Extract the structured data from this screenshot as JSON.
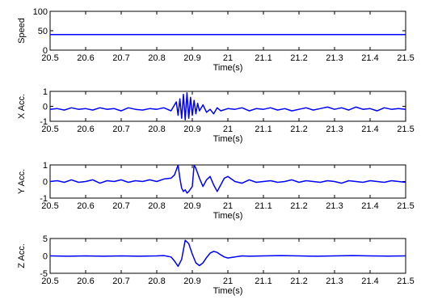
{
  "chart_data": [
    {
      "type": "line",
      "ylabel": "Speed",
      "xlabel": "Time(s)",
      "xlim": [
        20.5,
        21.5
      ],
      "ylim": [
        0,
        100
      ],
      "xticks": [
        "20.5",
        "20.6",
        "20.7",
        "20.8",
        "20.9",
        "21",
        "21.1",
        "21.2",
        "21.3",
        "21.4",
        "21.5"
      ],
      "yticks": [
        "0",
        "50",
        "100"
      ],
      "series": [
        {
          "color": "#0000ff",
          "x": [
            20.5,
            21.5
          ],
          "y": [
            40,
            40
          ]
        }
      ]
    },
    {
      "type": "line",
      "ylabel": "X Acc.",
      "xlabel": "Time(s)",
      "xlim": [
        20.5,
        21.5
      ],
      "ylim": [
        -1,
        1
      ],
      "xticks": [
        "20.5",
        "20.6",
        "20.7",
        "20.8",
        "20.9",
        "21",
        "21.1",
        "21.2",
        "21.3",
        "21.4",
        "21.5"
      ],
      "yticks": [
        "-1",
        "0",
        "1"
      ],
      "series": [
        {
          "color": "#0000ff",
          "x": [
            20.5,
            20.52,
            20.54,
            20.56,
            20.58,
            20.6,
            20.62,
            20.64,
            20.66,
            20.68,
            20.7,
            20.72,
            20.74,
            20.76,
            20.78,
            20.8,
            20.82,
            20.84,
            20.855,
            20.86,
            20.865,
            20.87,
            20.875,
            20.88,
            20.885,
            20.89,
            20.895,
            20.9,
            20.905,
            20.91,
            20.915,
            20.92,
            20.93,
            20.94,
            20.95,
            20.96,
            20.97,
            20.98,
            21.0,
            21.02,
            21.04,
            21.06,
            21.08,
            21.1,
            21.12,
            21.14,
            21.16,
            21.18,
            21.2,
            21.22,
            21.24,
            21.26,
            21.28,
            21.3,
            21.32,
            21.34,
            21.36,
            21.38,
            21.4,
            21.42,
            21.44,
            21.46,
            21.48,
            21.5
          ],
          "y": [
            -0.2,
            -0.15,
            -0.25,
            -0.1,
            -0.2,
            -0.15,
            -0.25,
            -0.1,
            -0.2,
            -0.15,
            -0.3,
            -0.1,
            -0.2,
            -0.25,
            -0.15,
            -0.2,
            -0.1,
            -0.3,
            0.3,
            -0.6,
            0.5,
            -0.8,
            0.8,
            -0.9,
            0.9,
            -0.8,
            0.6,
            -0.6,
            0.4,
            -0.5,
            0.2,
            -0.3,
            0.1,
            -0.4,
            -0.2,
            -0.5,
            -0.1,
            -0.3,
            -0.15,
            -0.2,
            -0.1,
            -0.3,
            -0.15,
            -0.2,
            -0.1,
            -0.25,
            -0.15,
            -0.3,
            -0.2,
            -0.1,
            -0.25,
            -0.15,
            -0.05,
            -0.2,
            -0.1,
            -0.25,
            -0.05,
            -0.2,
            -0.15,
            -0.3,
            -0.1,
            -0.2,
            -0.15,
            -0.2
          ]
        }
      ]
    },
    {
      "type": "line",
      "ylabel": "Y Acc.",
      "xlabel": "Time(s)",
      "xlim": [
        20.5,
        21.5
      ],
      "ylim": [
        -1,
        1
      ],
      "xticks": [
        "20.5",
        "20.6",
        "20.7",
        "20.8",
        "20.9",
        "21",
        "21.1",
        "21.2",
        "21.3",
        "21.4",
        "21.5"
      ],
      "yticks": [
        "-1",
        "0",
        "1"
      ],
      "series": [
        {
          "color": "#0000ff",
          "x": [
            20.5,
            20.52,
            20.54,
            20.56,
            20.58,
            20.6,
            20.62,
            20.64,
            20.66,
            20.68,
            20.7,
            20.72,
            20.74,
            20.76,
            20.78,
            20.8,
            20.82,
            20.84,
            20.85,
            20.86,
            20.865,
            20.87,
            20.875,
            20.88,
            20.885,
            20.89,
            20.9,
            20.905,
            20.91,
            20.92,
            20.93,
            20.94,
            20.95,
            20.96,
            20.97,
            20.98,
            20.99,
            21.0,
            21.02,
            21.04,
            21.06,
            21.08,
            21.1,
            21.12,
            21.14,
            21.16,
            21.18,
            21.2,
            21.22,
            21.24,
            21.26,
            21.28,
            21.3,
            21.32,
            21.34,
            21.36,
            21.38,
            21.4,
            21.42,
            21.44,
            21.46,
            21.48,
            21.5
          ],
          "y": [
            0.0,
            0.05,
            -0.05,
            0.1,
            -0.05,
            0.0,
            0.1,
            -0.1,
            0.05,
            0.0,
            0.1,
            -0.05,
            0.05,
            0.0,
            0.1,
            0.0,
            0.15,
            0.2,
            0.4,
            1.0,
            0.2,
            -0.4,
            -0.6,
            -0.5,
            -0.7,
            -0.6,
            -0.3,
            1.0,
            0.8,
            0.2,
            -0.3,
            0.1,
            0.3,
            -0.2,
            -0.6,
            -0.2,
            0.2,
            0.3,
            0.0,
            -0.1,
            0.1,
            -0.05,
            0.0,
            0.05,
            -0.05,
            0.0,
            0.1,
            -0.05,
            0.05,
            0.0,
            -0.05,
            0.05,
            0.0,
            -0.1,
            0.05,
            0.0,
            -0.05,
            0.05,
            0.0,
            -0.05,
            0.05,
            0.0,
            -0.05
          ]
        }
      ]
    },
    {
      "type": "line",
      "ylabel": "Z Acc.",
      "xlabel": "Time(s)",
      "xlim": [
        20.5,
        21.5
      ],
      "ylim": [
        -5,
        5
      ],
      "xticks": [
        "20.5",
        "20.6",
        "20.7",
        "20.8",
        "20.9",
        "21",
        "21.1",
        "21.2",
        "21.3",
        "21.4",
        "21.5"
      ],
      "yticks": [
        "-5",
        "0",
        "5"
      ],
      "series": [
        {
          "color": "#0000ff",
          "x": [
            20.5,
            20.55,
            20.6,
            20.65,
            20.7,
            20.75,
            20.8,
            20.82,
            20.84,
            20.85,
            20.86,
            20.87,
            20.88,
            20.89,
            20.9,
            20.91,
            20.92,
            20.93,
            20.94,
            20.95,
            20.96,
            20.97,
            20.98,
            20.99,
            21.0,
            21.02,
            21.04,
            21.06,
            21.1,
            21.15,
            21.2,
            21.25,
            21.3,
            21.35,
            21.4,
            21.45,
            21.5
          ],
          "y": [
            0.0,
            -0.1,
            0.0,
            -0.1,
            0.0,
            -0.1,
            0.0,
            0.1,
            -0.3,
            -1.5,
            -3.0,
            -1.0,
            4.5,
            3.5,
            0.5,
            -2.0,
            -2.8,
            -2.0,
            -0.5,
            0.8,
            1.3,
            1.0,
            0.3,
            -0.3,
            -0.6,
            -0.3,
            0.0,
            -0.1,
            0.0,
            0.1,
            0.0,
            -0.1,
            0.0,
            0.1,
            0.0,
            -0.05,
            0.0
          ]
        }
      ]
    }
  ]
}
